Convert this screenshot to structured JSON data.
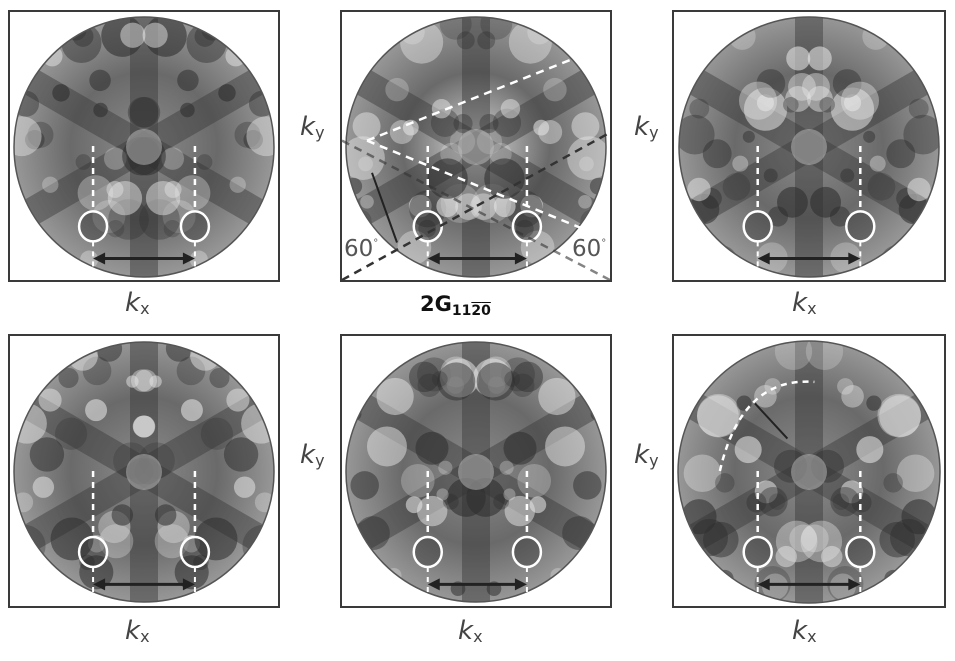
{
  "figure": {
    "panels": [
      {
        "name": "panel-top-left",
        "x_label": "x",
        "y_label": null
      },
      {
        "name": "panel-top-middle",
        "x_label": null,
        "y_label": "y",
        "angle_left": "60",
        "angle_right": "60"
      },
      {
        "name": "panel-top-right",
        "x_label": "x",
        "y_label": "y"
      },
      {
        "name": "panel-bottom-left",
        "x_label": "x",
        "y_label": null
      },
      {
        "name": "panel-bottom-middle",
        "x_label": "x",
        "y_label": "y"
      },
      {
        "name": "panel-bottom-right",
        "x_label": "x",
        "y_label": "y"
      }
    ],
    "axis_symbol": "k",
    "degree_symbol": "°",
    "center_label": {
      "main": "2G",
      "sub_plain": "11",
      "sub_bar": "2",
      "sub_end": "0"
    }
  }
}
